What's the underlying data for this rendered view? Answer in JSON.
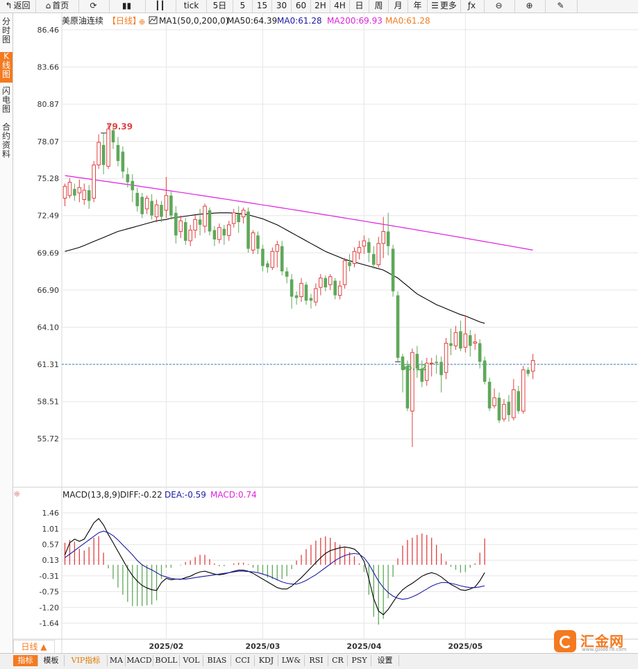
{
  "toolbar": {
    "items": [
      {
        "label": "返回",
        "icon": "back-arrow-icon"
      },
      {
        "label": "首页",
        "icon": "home-icon"
      },
      {
        "label": "",
        "icon": "refresh-icon"
      },
      {
        "label": "",
        "icon": "bar-chart-icon"
      },
      {
        "label": "",
        "icon": "candlestick-icon"
      },
      {
        "label": "tick",
        "icon": ""
      },
      {
        "label": "5日",
        "icon": ""
      },
      {
        "label": "5",
        "icon": ""
      },
      {
        "label": "15",
        "icon": ""
      },
      {
        "label": "30",
        "icon": ""
      },
      {
        "label": "60",
        "icon": ""
      },
      {
        "label": "2H",
        "icon": ""
      },
      {
        "label": "4H",
        "icon": ""
      },
      {
        "label": "日",
        "icon": ""
      },
      {
        "label": "周",
        "icon": ""
      },
      {
        "label": "月",
        "icon": ""
      },
      {
        "label": "年",
        "icon": ""
      },
      {
        "label": "更多",
        "icon": "menu-icon"
      },
      {
        "label": "",
        "icon": "function-icon"
      },
      {
        "label": "",
        "icon": "zoom-out-icon"
      },
      {
        "label": "",
        "icon": "zoom-in-icon"
      },
      {
        "label": "",
        "icon": "pen-icon"
      }
    ]
  },
  "left_nav": [
    {
      "label": "分\n时\n图"
    },
    {
      "label": "K\n线\n图"
    },
    {
      "label": "闪\n电\n图"
    },
    {
      "label": "合\n约\n资\n料"
    }
  ],
  "legend": {
    "symbol": "美原油连续",
    "period": "【日线】",
    "ma_params": "MA1(50,0,200,0)",
    "ma50": "MA50:64.39",
    "ma0a": "MA0:61.28",
    "ma200": "MA200:69.93",
    "ma0b": "MA0:61.28"
  },
  "macd_legend": {
    "params": "MACD(13,8,9)",
    "diff": "DIFF:-0.22",
    "dea": "DEA:-0.59",
    "macd": "MACD:0.74"
  },
  "bottom_tab": "日线 ▲",
  "bottom_bar": [
    "指标",
    "模板",
    "VIP指标",
    "MA",
    "MACD",
    "BOLL",
    "VOL",
    "BIAS",
    "CCI",
    "KDJ",
    "LW&",
    "RSI",
    "CR",
    "PSY",
    "设置"
  ],
  "logo": {
    "text": "汇金网",
    "sub": "www.gold678.com"
  },
  "colors": {
    "up": "#e04040",
    "down": "#5fa85a",
    "ma50": "#000000",
    "ma200": "#dd22dd",
    "dea": "#1a1aa8",
    "diff": "#000000",
    "grid": "#e6e6e6",
    "accent": "#f47a20",
    "hline": "#2a7cc8"
  },
  "chart_data": {
    "type": "candlestick",
    "y_ticks": [
      86.46,
      83.66,
      80.87,
      78.07,
      75.28,
      72.49,
      69.69,
      66.9,
      64.1,
      61.31,
      58.51,
      55.72
    ],
    "ylim": [
      53.8,
      87.5
    ],
    "x_ticks": [
      {
        "label": "2025/02",
        "index": 21
      },
      {
        "label": "2025/03",
        "index": 41
      },
      {
        "label": "2025/04",
        "index": 62
      },
      {
        "label": "2025/05",
        "index": 83
      }
    ],
    "last_price": 61.31,
    "high_label": "79.39",
    "low_label": "55.12",
    "high_index": 8,
    "low_index": 69,
    "candles": [
      [
        73.8,
        74.7,
        73.2,
        74.9
      ],
      [
        74.0,
        75.0,
        73.8,
        75.3
      ],
      [
        74.5,
        74.0,
        73.6,
        74.9
      ],
      [
        74.2,
        74.6,
        73.5,
        75.2
      ],
      [
        73.7,
        74.4,
        73.3,
        74.9
      ],
      [
        74.4,
        73.6,
        73.0,
        74.8
      ],
      [
        73.8,
        76.3,
        73.5,
        76.6
      ],
      [
        76.3,
        78.0,
        76.0,
        78.6
      ],
      [
        77.8,
        76.3,
        75.6,
        78.7
      ],
      [
        76.2,
        79.0,
        76.0,
        79.4
      ],
      [
        78.9,
        78.0,
        77.5,
        79.2
      ],
      [
        77.8,
        76.6,
        76.2,
        78.4
      ],
      [
        77.3,
        75.8,
        75.3,
        77.7
      ],
      [
        75.6,
        75.0,
        74.6,
        76.1
      ],
      [
        75.1,
        74.4,
        73.5,
        75.6
      ],
      [
        74.2,
        73.2,
        72.8,
        74.6
      ],
      [
        73.9,
        72.6,
        72.3,
        74.2
      ],
      [
        73.0,
        73.8,
        72.6,
        74.0
      ],
      [
        73.6,
        72.5,
        72.2,
        74.1
      ],
      [
        72.4,
        73.3,
        72.0,
        73.7
      ],
      [
        73.3,
        72.4,
        72.0,
        73.6
      ],
      [
        72.9,
        74.0,
        72.3,
        75.4
      ],
      [
        74.0,
        72.5,
        72.2,
        74.3
      ],
      [
        72.7,
        71.0,
        70.4,
        73.2
      ],
      [
        71.3,
        72.1,
        70.8,
        72.5
      ],
      [
        72.0,
        70.6,
        70.3,
        72.3
      ],
      [
        70.6,
        71.4,
        70.2,
        71.8
      ],
      [
        71.4,
        72.2,
        70.8,
        72.5
      ],
      [
        72.2,
        71.8,
        71.0,
        73.0
      ],
      [
        71.7,
        73.2,
        71.2,
        73.4
      ],
      [
        72.9,
        71.3,
        71.0,
        73.1
      ],
      [
        71.4,
        70.7,
        70.2,
        71.7
      ],
      [
        70.7,
        71.6,
        70.4,
        71.9
      ],
      [
        71.5,
        71.0,
        70.3,
        71.8
      ],
      [
        71.0,
        71.8,
        70.6,
        72.1
      ],
      [
        71.9,
        72.7,
        71.6,
        73.0
      ],
      [
        72.6,
        72.0,
        71.2,
        73.2
      ],
      [
        72.4,
        72.9,
        71.9,
        73.1
      ],
      [
        72.8,
        70.0,
        69.7,
        73.1
      ],
      [
        69.9,
        71.2,
        69.6,
        71.4
      ],
      [
        71.0,
        70.0,
        69.6,
        71.3
      ],
      [
        70.0,
        68.7,
        68.3,
        70.3
      ],
      [
        68.9,
        68.6,
        68.2,
        69.1
      ],
      [
        68.6,
        69.8,
        68.4,
        70.1
      ],
      [
        69.8,
        70.3,
        68.6,
        70.6
      ],
      [
        70.2,
        68.3,
        68.0,
        70.6
      ],
      [
        68.3,
        67.9,
        67.4,
        68.6
      ],
      [
        67.7,
        66.4,
        65.5,
        68.1
      ],
      [
        66.5,
        66.3,
        65.8,
        66.8
      ],
      [
        66.4,
        67.4,
        66.0,
        67.8
      ],
      [
        67.3,
        66.1,
        65.8,
        67.5
      ],
      [
        66.3,
        66.1,
        65.5,
        66.6
      ],
      [
        66.0,
        67.0,
        65.7,
        67.4
      ],
      [
        67.1,
        67.8,
        66.5,
        68.1
      ],
      [
        67.8,
        67.1,
        66.8,
        68.0
      ],
      [
        67.3,
        67.9,
        66.9,
        68.1
      ],
      [
        67.6,
        66.5,
        66.2,
        67.8
      ],
      [
        66.5,
        67.2,
        66.2,
        67.6
      ],
      [
        67.3,
        69.1,
        67.0,
        69.3
      ],
      [
        69.0,
        68.7,
        68.3,
        69.6
      ],
      [
        68.9,
        69.8,
        68.6,
        70.1
      ],
      [
        69.7,
        70.1,
        69.2,
        70.6
      ],
      [
        70.2,
        70.6,
        69.6,
        71.0
      ],
      [
        70.5,
        69.7,
        69.0,
        70.8
      ],
      [
        69.6,
        68.8,
        68.5,
        70.2
      ],
      [
        68.8,
        70.4,
        68.6,
        70.9
      ],
      [
        70.4,
        71.3,
        69.3,
        72.4
      ],
      [
        71.3,
        70.2,
        69.5,
        72.7
      ],
      [
        70.0,
        66.8,
        66.4,
        70.3
      ],
      [
        66.5,
        61.8,
        61.5,
        66.8
      ],
      [
        61.9,
        60.9,
        59.2,
        62.1
      ],
      [
        61.2,
        58.0,
        57.8,
        61.6
      ],
      [
        57.8,
        62.2,
        55.1,
        62.5
      ],
      [
        62.1,
        61.0,
        60.3,
        62.7
      ],
      [
        61.0,
        60.0,
        59.6,
        61.6
      ],
      [
        60.1,
        61.4,
        59.7,
        61.8
      ],
      [
        61.4,
        61.4,
        60.4,
        61.8
      ],
      [
        61.5,
        61.4,
        60.6,
        62.0
      ],
      [
        61.5,
        60.5,
        59.2,
        61.9
      ],
      [
        60.7,
        62.9,
        60.2,
        63.3
      ],
      [
        62.9,
        62.7,
        62.0,
        64.0
      ],
      [
        62.7,
        63.7,
        62.4,
        64.2
      ],
      [
        63.8,
        62.5,
        62.3,
        64.6
      ],
      [
        62.6,
        63.6,
        62.2,
        65.0
      ],
      [
        63.5,
        62.7,
        61.9,
        63.9
      ],
      [
        62.9,
        63.0,
        62.4,
        63.6
      ],
      [
        62.9,
        61.5,
        61.0,
        63.2
      ],
      [
        61.6,
        60.0,
        59.8,
        61.9
      ],
      [
        60.0,
        58.0,
        57.8,
        60.3
      ],
      [
        58.2,
        58.8,
        58.0,
        59.5
      ],
      [
        58.8,
        57.1,
        56.9,
        59.2
      ],
      [
        57.2,
        58.3,
        57.0,
        58.7
      ],
      [
        58.5,
        57.5,
        57.0,
        59.0
      ],
      [
        57.3,
        59.4,
        57.1,
        60.2
      ],
      [
        59.3,
        57.8,
        57.6,
        59.7
      ],
      [
        57.8,
        60.9,
        57.6,
        61.2
      ],
      [
        60.9,
        60.6,
        60.4,
        61.1
      ],
      [
        60.8,
        61.6,
        60.2,
        62.1
      ]
    ],
    "ma50": [
      69.8,
      69.9,
      70.0,
      70.1,
      70.25,
      70.4,
      70.55,
      70.7,
      70.85,
      71.0,
      71.15,
      71.3,
      71.4,
      71.5,
      71.6,
      71.7,
      71.8,
      71.9,
      72.0,
      72.1,
      72.15,
      72.2,
      72.3,
      72.35,
      72.4,
      72.45,
      72.5,
      72.55,
      72.6,
      72.62,
      72.65,
      72.68,
      72.7,
      72.7,
      72.7,
      72.68,
      72.65,
      72.6,
      72.55,
      72.45,
      72.35,
      72.25,
      72.1,
      71.95,
      71.8,
      71.6,
      71.4,
      71.2,
      71.0,
      70.8,
      70.6,
      70.4,
      70.2,
      70.0,
      69.8,
      69.65,
      69.5,
      69.35,
      69.2,
      69.1,
      69.0,
      68.9,
      68.8,
      68.7,
      68.6,
      68.5,
      68.4,
      68.2,
      68.0,
      67.8,
      67.5,
      67.2,
      66.9,
      66.6,
      66.4,
      66.2,
      66.0,
      65.8,
      65.65,
      65.5,
      65.35,
      65.2,
      65.05,
      64.95,
      64.8,
      64.65,
      64.5,
      64.4
    ],
    "ma200_start": 75.5,
    "ma200_end": 69.9,
    "macd_ylim": [
      -2.05,
      1.85
    ],
    "macd_ticks": [
      1.46,
      1.01,
      0.57,
      0.13,
      -0.31,
      -0.75,
      -1.2,
      -1.64
    ],
    "diff": [
      0.28,
      0.62,
      0.72,
      0.66,
      0.72,
      0.95,
      1.18,
      1.3,
      1.12,
      0.85,
      0.62,
      0.38,
      0.14,
      -0.1,
      -0.3,
      -0.46,
      -0.58,
      -0.65,
      -0.7,
      -0.72,
      -0.5,
      -0.38,
      -0.42,
      -0.4,
      -0.41,
      -0.36,
      -0.32,
      -0.25,
      -0.2,
      -0.18,
      -0.22,
      -0.26,
      -0.28,
      -0.26,
      -0.22,
      -0.18,
      -0.15,
      -0.15,
      -0.18,
      -0.24,
      -0.32,
      -0.4,
      -0.48,
      -0.56,
      -0.64,
      -0.68,
      -0.68,
      -0.6,
      -0.48,
      -0.36,
      -0.22,
      -0.08,
      0.06,
      0.2,
      0.32,
      0.4,
      0.44,
      0.48,
      0.5,
      0.48,
      0.44,
      0.32,
      0.1,
      -0.4,
      -0.95,
      -1.3,
      -1.4,
      -1.25,
      -1.05,
      -0.85,
      -0.7,
      -0.6,
      -0.52,
      -0.42,
      -0.32,
      -0.26,
      -0.22,
      -0.26,
      -0.34,
      -0.45,
      -0.55,
      -0.62,
      -0.7,
      -0.72,
      -0.68,
      -0.62,
      -0.45,
      -0.22
    ],
    "dea": [
      0.2,
      0.3,
      0.4,
      0.5,
      0.6,
      0.7,
      0.8,
      0.9,
      0.95,
      0.9,
      0.82,
      0.7,
      0.56,
      0.42,
      0.28,
      0.12,
      0.0,
      -0.08,
      -0.14,
      -0.22,
      -0.3,
      -0.34,
      -0.38,
      -0.4,
      -0.4,
      -0.4,
      -0.38,
      -0.36,
      -0.34,
      -0.32,
      -0.3,
      -0.28,
      -0.26,
      -0.24,
      -0.22,
      -0.2,
      -0.18,
      -0.18,
      -0.19,
      -0.2,
      -0.22,
      -0.26,
      -0.3,
      -0.36,
      -0.42,
      -0.48,
      -0.52,
      -0.54,
      -0.54,
      -0.5,
      -0.44,
      -0.36,
      -0.28,
      -0.18,
      -0.08,
      0.02,
      0.12,
      0.2,
      0.26,
      0.3,
      0.32,
      0.3,
      0.2,
      0.02,
      -0.22,
      -0.46,
      -0.64,
      -0.78,
      -0.88,
      -0.94,
      -0.97,
      -0.95,
      -0.9,
      -0.84,
      -0.76,
      -0.68,
      -0.6,
      -0.54,
      -0.5,
      -0.5,
      -0.52,
      -0.55,
      -0.59,
      -0.62,
      -0.64,
      -0.64,
      -0.62,
      -0.59
    ],
    "macd_hist": [
      0.62,
      0.7,
      0.65,
      0.45,
      0.4,
      0.5,
      0.76,
      0.8,
      0.34,
      -0.1,
      -0.4,
      -0.64,
      -0.84,
      -1.04,
      -1.16,
      -1.16,
      -1.16,
      -1.14,
      -1.12,
      -1.0,
      -0.4,
      -0.08,
      -0.08,
      0.0,
      -0.02,
      0.08,
      0.12,
      0.22,
      0.28,
      0.28,
      0.16,
      0.04,
      -0.04,
      -0.04,
      0.0,
      0.04,
      0.06,
      0.06,
      0.02,
      -0.08,
      -0.2,
      -0.28,
      -0.36,
      -0.4,
      -0.44,
      -0.4,
      -0.32,
      -0.12,
      0.12,
      0.28,
      0.44,
      0.56,
      0.68,
      0.76,
      0.8,
      0.76,
      0.64,
      0.56,
      0.48,
      0.36,
      0.24,
      0.04,
      -0.2,
      -0.84,
      -1.46,
      -1.68,
      -1.52,
      -0.94,
      -0.34,
      0.18,
      0.54,
      0.7,
      0.76,
      0.84,
      0.88,
      0.84,
      0.76,
      0.56,
      0.32,
      0.1,
      -0.06,
      -0.14,
      -0.22,
      -0.2,
      -0.08,
      0.04,
      0.34,
      0.74
    ]
  }
}
